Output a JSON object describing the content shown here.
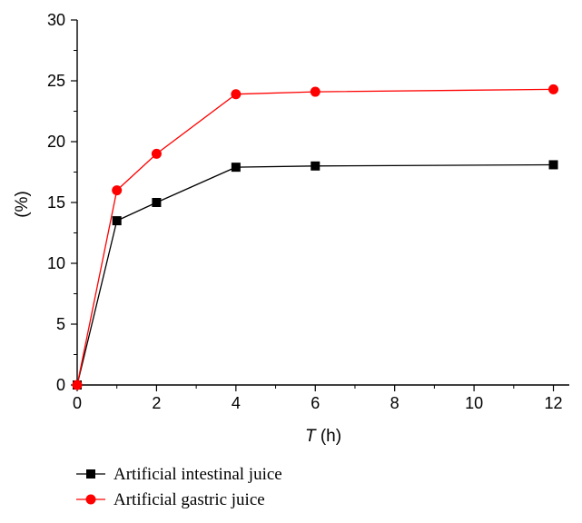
{
  "chart_data": {
    "type": "line",
    "title": "",
    "xlabel": "(h)",
    "xlabel_italic": "T",
    "ylabel": "(%)",
    "xlim": [
      0,
      12.4
    ],
    "ylim": [
      0,
      30
    ],
    "xticks": [
      0,
      2,
      4,
      6,
      8,
      10,
      12
    ],
    "yticks": [
      0,
      5,
      10,
      15,
      20,
      25,
      30
    ],
    "grid": false,
    "legend_position": "bottom-left",
    "series": [
      {
        "name": "Artificial intestinal juice",
        "color": "#000000",
        "marker": "square",
        "x": [
          0,
          1,
          2,
          4,
          6,
          12
        ],
        "y": [
          0,
          13.5,
          15,
          17.9,
          18,
          18.1
        ]
      },
      {
        "name": "Artificial gastric juice",
        "color": "#ff0000",
        "marker": "circle",
        "x": [
          0,
          1,
          2,
          4,
          6,
          12
        ],
        "y": [
          0,
          16,
          19,
          23.9,
          24.1,
          24.3
        ]
      }
    ]
  }
}
